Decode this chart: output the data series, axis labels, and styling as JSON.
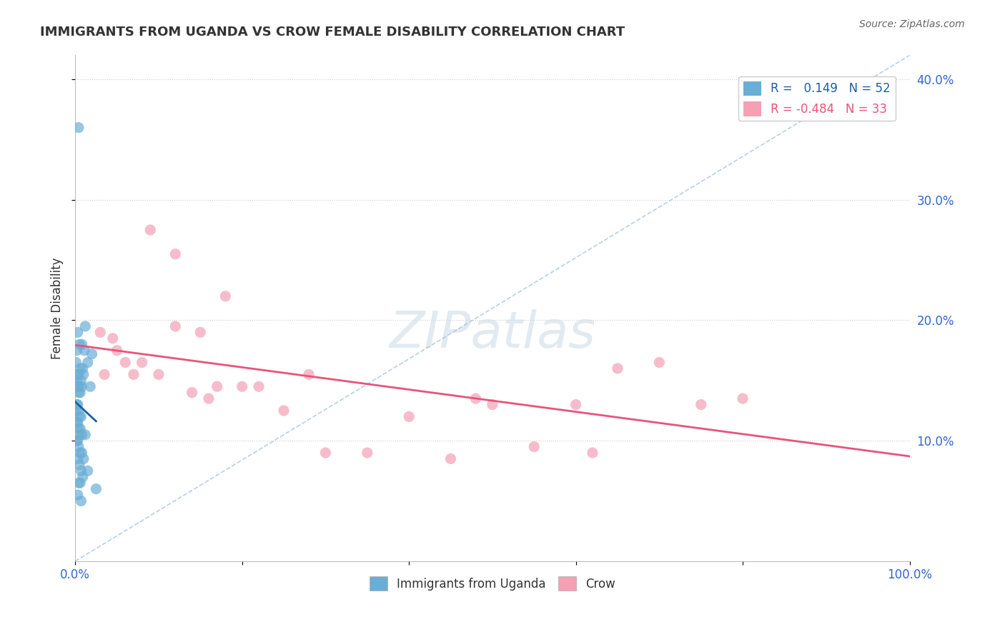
{
  "title": "IMMIGRANTS FROM UGANDA VS CROW FEMALE DISABILITY CORRELATION CHART",
  "source": "Source: ZipAtlas.com",
  "ylabel": "Female Disability",
  "blue_R": 0.149,
  "blue_N": 52,
  "pink_R": -0.484,
  "pink_N": 33,
  "blue_color": "#6aaed6",
  "pink_color": "#f4a0b5",
  "blue_line_color": "#1a5fa8",
  "pink_line_color": "#e8547a",
  "ref_line_color": "#a8c4e0",
  "blue_x": [
    0.4,
    2.0,
    1.2,
    0.3,
    0.5,
    0.8,
    1.5,
    0.2,
    0.1,
    0.6,
    0.9,
    1.1,
    0.3,
    0.4,
    0.7,
    0.2,
    0.5,
    0.3,
    0.8,
    1.0,
    0.4,
    0.6,
    1.8,
    0.3,
    0.2,
    0.1,
    0.4,
    0.5,
    0.7,
    0.3,
    0.2,
    0.6,
    0.4,
    0.8,
    1.2,
    0.5,
    0.3,
    0.2,
    0.4,
    0.6,
    0.8,
    1.0,
    0.3,
    0.5,
    0.7,
    1.5,
    0.9,
    0.4,
    0.6,
    2.5,
    0.3,
    0.7
  ],
  "blue_y": [
    0.36,
    0.172,
    0.195,
    0.19,
    0.18,
    0.18,
    0.165,
    0.175,
    0.165,
    0.16,
    0.16,
    0.175,
    0.155,
    0.155,
    0.15,
    0.15,
    0.145,
    0.145,
    0.145,
    0.155,
    0.14,
    0.14,
    0.145,
    0.13,
    0.13,
    0.125,
    0.125,
    0.12,
    0.12,
    0.115,
    0.115,
    0.11,
    0.11,
    0.105,
    0.105,
    0.105,
    0.1,
    0.1,
    0.095,
    0.09,
    0.09,
    0.085,
    0.085,
    0.08,
    0.075,
    0.075,
    0.07,
    0.065,
    0.065,
    0.06,
    0.055,
    0.05
  ],
  "pink_x": [
    4.5,
    9.0,
    12.0,
    18.0,
    12.0,
    3.0,
    5.0,
    6.0,
    8.0,
    7.0,
    3.5,
    15.0,
    20.0,
    65.0,
    70.0,
    75.0,
    80.0,
    55.0,
    40.0,
    25.0,
    30.0,
    48.0,
    50.0,
    60.0,
    62.0,
    45.0,
    35.0,
    28.0,
    22.0,
    10.0,
    14.0,
    16.0,
    17.0
  ],
  "pink_y": [
    0.185,
    0.275,
    0.255,
    0.22,
    0.195,
    0.19,
    0.175,
    0.165,
    0.165,
    0.155,
    0.155,
    0.19,
    0.145,
    0.16,
    0.165,
    0.13,
    0.135,
    0.095,
    0.12,
    0.125,
    0.09,
    0.135,
    0.13,
    0.13,
    0.09,
    0.085,
    0.09,
    0.155,
    0.145,
    0.155,
    0.14,
    0.135,
    0.145
  ],
  "xlim": [
    0,
    100
  ],
  "ylim": [
    0.0,
    0.42
  ],
  "yticks": [
    0.1,
    0.2,
    0.3,
    0.4
  ],
  "ytick_labels": [
    "10.0%",
    "20.0%",
    "30.0%",
    "40.0%"
  ],
  "xticks": [
    0,
    20,
    40,
    60,
    80,
    100
  ],
  "xtick_labels": [
    "0.0%",
    "",
    "",
    "",
    "",
    "100.0%"
  ]
}
